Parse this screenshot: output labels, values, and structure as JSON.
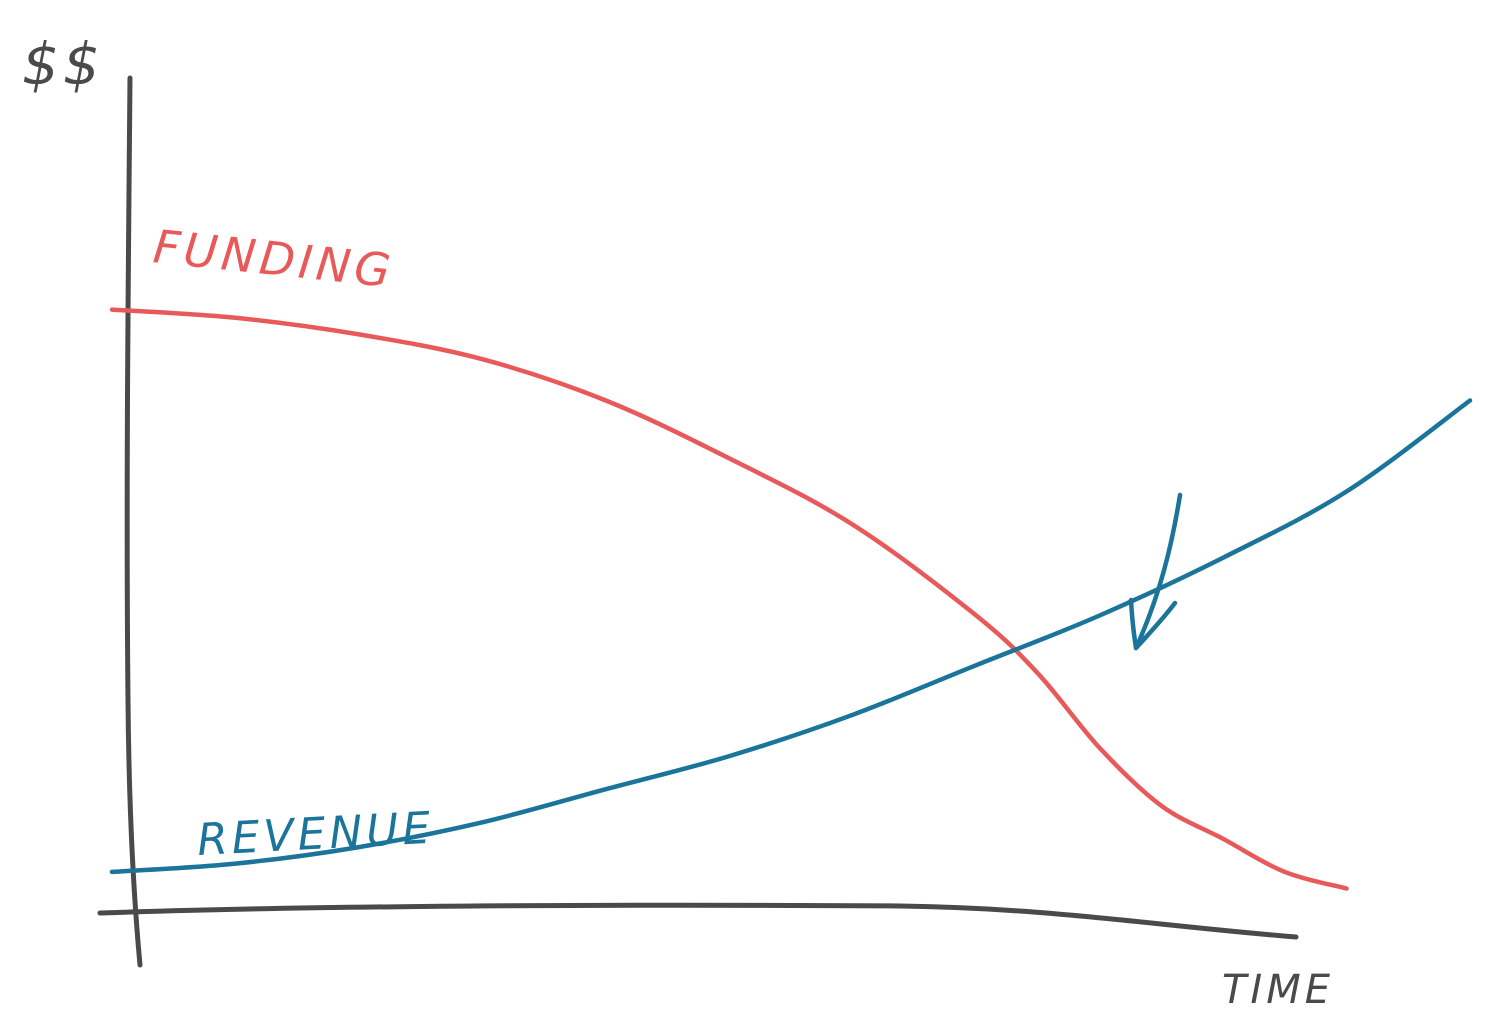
{
  "colors": {
    "axis": "#4a4a4a",
    "funding": "#e8595a",
    "revenue": "#1b7499",
    "background": "#ffffff"
  },
  "chart_data": {
    "type": "line",
    "title": "",
    "xlabel": "TIME",
    "ylabel": "$$",
    "xlim": [
      0,
      10
    ],
    "ylim": [
      0,
      10
    ],
    "grid": false,
    "legend": "none",
    "series": [
      {
        "name": "FUNDING",
        "color": "#e8595a",
        "x": [
          0,
          1,
          2,
          3,
          4,
          5,
          6,
          7,
          7.5,
          8,
          8.5,
          9,
          9.5,
          10
        ],
        "y": [
          7.2,
          7.1,
          6.9,
          6.6,
          6.1,
          5.4,
          4.6,
          3.5,
          2.8,
          1.9,
          1.2,
          0.8,
          0.4,
          0.2
        ]
      },
      {
        "name": "REVENUE",
        "color": "#1b7499",
        "x": [
          0,
          1,
          2,
          3,
          4,
          5,
          6,
          7,
          8,
          9,
          10,
          11
        ],
        "y": [
          0.4,
          0.5,
          0.7,
          1.0,
          1.4,
          1.8,
          2.3,
          2.9,
          3.5,
          4.2,
          5.0,
          6.1
        ]
      }
    ],
    "annotations": [
      {
        "type": "arrow",
        "target": "crossover of FUNDING and REVENUE",
        "x": 8.3,
        "y": 2.6
      }
    ]
  }
}
